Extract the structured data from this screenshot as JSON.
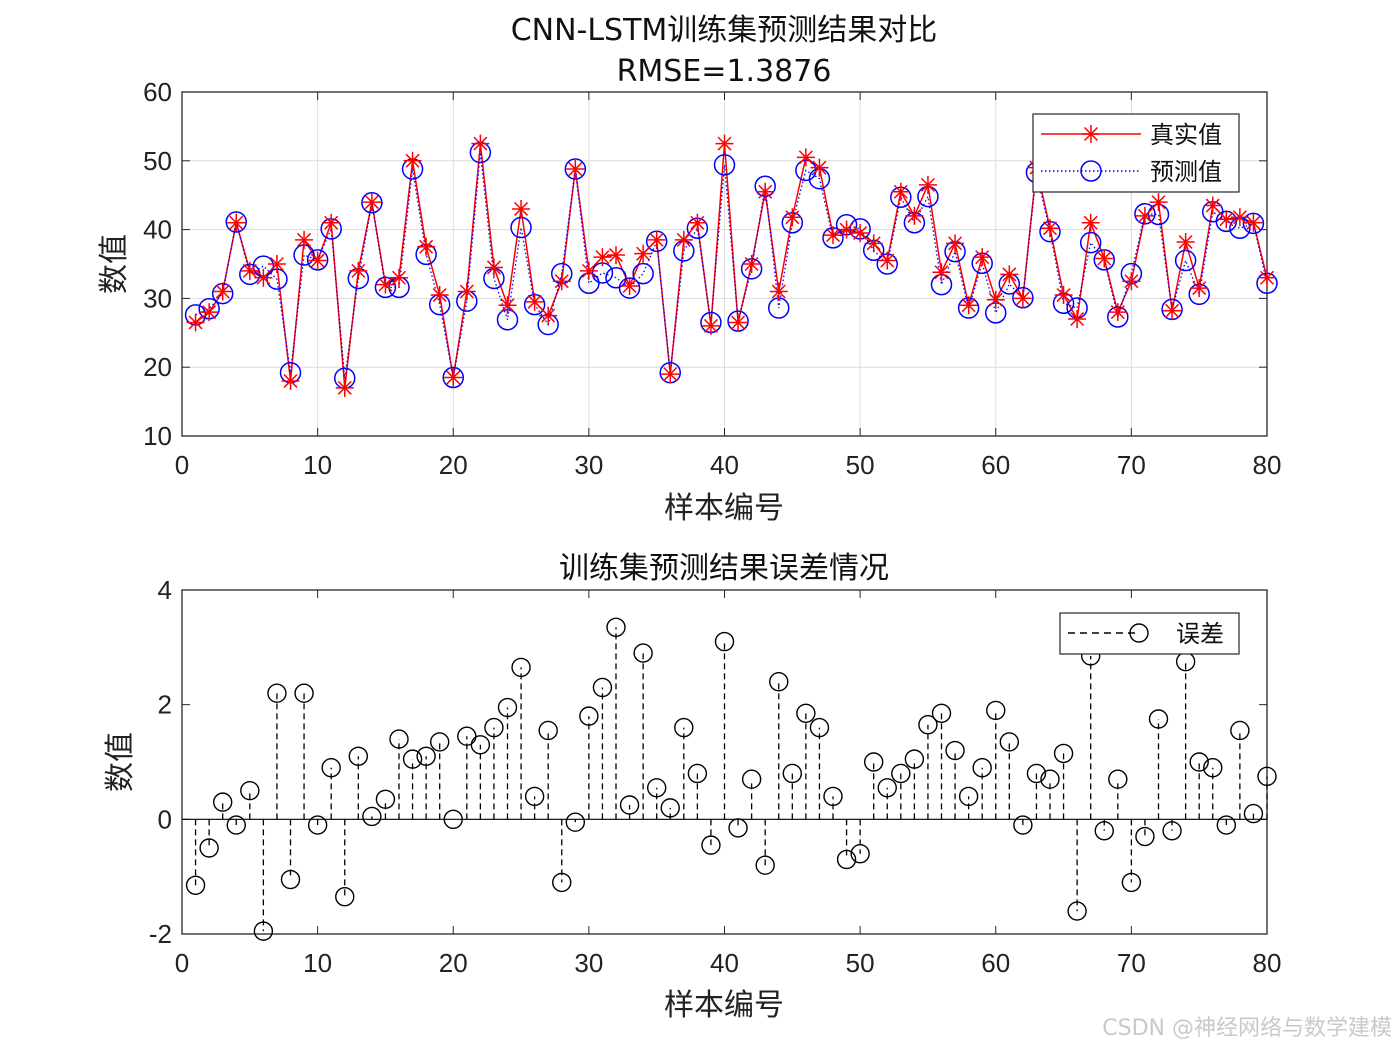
{
  "watermark": "CSDN @神经网络与数学建模",
  "chart_data": [
    {
      "type": "line",
      "title": "CNN-LSTM训练集预测结果对比",
      "subtitle": "RMSE=1.3876",
      "xlabel": "样本编号",
      "ylabel": "数值",
      "xlim": [
        0,
        80
      ],
      "ylim": [
        10,
        60
      ],
      "xticks": [
        0,
        10,
        20,
        30,
        40,
        50,
        60,
        70,
        80
      ],
      "yticks": [
        10,
        20,
        30,
        40,
        50,
        60
      ],
      "grid": true,
      "legend_position": "top-right",
      "colors": {
        "true": "#ff0000",
        "pred": "#0000ff"
      },
      "x": [
        1,
        2,
        3,
        4,
        5,
        6,
        7,
        8,
        9,
        10,
        11,
        12,
        13,
        14,
        15,
        16,
        17,
        18,
        19,
        20,
        21,
        22,
        23,
        24,
        25,
        26,
        27,
        28,
        29,
        30,
        31,
        32,
        33,
        34,
        35,
        36,
        37,
        38,
        39,
        40,
        41,
        42,
        43,
        44,
        45,
        46,
        47,
        48,
        49,
        50,
        51,
        52,
        53,
        54,
        55,
        56,
        57,
        58,
        59,
        60,
        61,
        62,
        63,
        64,
        65,
        66,
        67,
        68,
        69,
        70,
        71,
        72,
        73,
        74,
        75,
        76,
        77,
        78,
        79,
        80
      ],
      "series": [
        {
          "name": "真实值",
          "style": "solid-star",
          "values": [
            26.5,
            28,
            31,
            41,
            34,
            33,
            35,
            18,
            38.5,
            35.5,
            41,
            17,
            34,
            44,
            32,
            33,
            50,
            37.5,
            30.5,
            18.5,
            31,
            52.5,
            34.5,
            29,
            43,
            29.5,
            27.5,
            32.5,
            48.8,
            34,
            36,
            36.3,
            31.8,
            36.5,
            38.5,
            19,
            38.5,
            41,
            26,
            52.5,
            26.5,
            35,
            45.5,
            31,
            41.8,
            50.5,
            49,
            39.2,
            40,
            39.5,
            38,
            35.5,
            45.5,
            42,
            46.5,
            33.8,
            38,
            29,
            36,
            29.8,
            33.5,
            30,
            49,
            40.2,
            30.5,
            27,
            41,
            35.8,
            28,
            32.5,
            42,
            44,
            28.2,
            38.2,
            31.5,
            43.5,
            41.5,
            41.8,
            41,
            33
          ]
        },
        {
          "name": "预测值",
          "style": "dotted-circle",
          "values": [
            27.6,
            28.5,
            30.7,
            41.1,
            33.5,
            34.7,
            32.8,
            19.2,
            36.3,
            35.6,
            40.1,
            18.4,
            32.9,
            43.9,
            31.6,
            31.6,
            48.8,
            36.4,
            29.1,
            18.5,
            29.6,
            51.2,
            32.9,
            26.9,
            40.3,
            29.1,
            26.2,
            33.6,
            48.8,
            32.2,
            33.7,
            33,
            31.5,
            33.6,
            38.3,
            19.2,
            36.9,
            40.2,
            26.5,
            49.4,
            26.7,
            34.3,
            46.3,
            28.6,
            41,
            48.6,
            47.4,
            38.8,
            40.7,
            40.1,
            37,
            35,
            44.7,
            41,
            44.8,
            32,
            36.8,
            28.6,
            35.1,
            27.9,
            32.1,
            30.1,
            48.3,
            39.7,
            29.3,
            28.6,
            38.1,
            35.6,
            27.3,
            33.6,
            42.3,
            42.2,
            28.4,
            35.5,
            30.6,
            42.6,
            41.2,
            40.2,
            40.9,
            32.2
          ]
        }
      ]
    },
    {
      "type": "stem",
      "title": "训练集预测结果误差情况",
      "xlabel": "样本编号",
      "ylabel": "数值",
      "xlim": [
        0,
        80
      ],
      "ylim": [
        -2,
        4
      ],
      "xticks": [
        0,
        10,
        20,
        30,
        40,
        50,
        60,
        70,
        80
      ],
      "yticks": [
        -2,
        0,
        2,
        4
      ],
      "grid": false,
      "legend_position": "top-right",
      "colors": {
        "stem": "#000000"
      },
      "series": [
        {
          "name": "误差",
          "style": "dashed-stem-circle",
          "values": [
            -1.15,
            -0.5,
            0.3,
            -0.1,
            0.5,
            -1.95,
            2.2,
            -1.05,
            2.2,
            -0.1,
            0.9,
            -1.35,
            1.1,
            0.05,
            0.35,
            1.4,
            1.05,
            1.1,
            1.35,
            0,
            1.45,
            1.3,
            1.6,
            1.95,
            2.65,
            0.4,
            1.55,
            -1.1,
            -0.05,
            1.8,
            2.3,
            3.35,
            0.25,
            2.9,
            0.55,
            0.2,
            1.6,
            0.8,
            -0.45,
            3.1,
            -0.15,
            0.7,
            -0.8,
            2.4,
            0.8,
            1.85,
            1.6,
            0.4,
            -0.7,
            -0.6,
            1,
            0.55,
            0.8,
            1.05,
            1.65,
            1.85,
            1.2,
            0.4,
            0.9,
            1.9,
            1.35,
            -0.1,
            0.8,
            0.7,
            1.15,
            -1.6,
            2.85,
            -0.2,
            0.7,
            -1.1,
            -0.3,
            1.75,
            -0.2,
            2.75,
            1,
            0.9,
            -0.1,
            1.55,
            0.1,
            0.75
          ]
        }
      ]
    }
  ]
}
